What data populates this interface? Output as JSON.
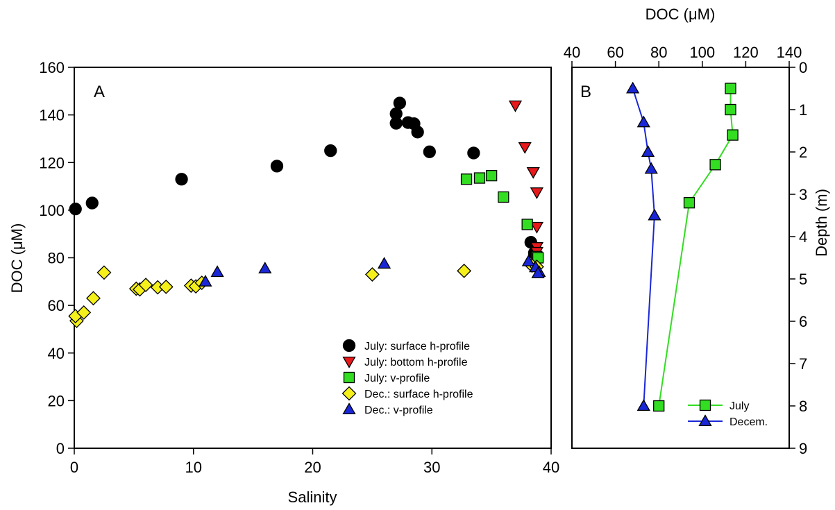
{
  "chart_data": [
    {
      "panel": "A",
      "type": "scatter",
      "xlabel": "Salinity",
      "ylabel": "DOC (μM)",
      "xlim": [
        0,
        40
      ],
      "ylim": [
        0,
        160
      ],
      "xticks": [
        "0",
        "10",
        "20",
        "30",
        "40"
      ],
      "yticks": [
        "0",
        "20",
        "40",
        "60",
        "80",
        "100",
        "120",
        "140",
        "160"
      ],
      "legend_position": "bottom-right",
      "grid": false,
      "series": [
        {
          "name": "July: surface h-profile",
          "marker": "circle",
          "color": "#000000",
          "points": [
            [
              0.1,
              100.5
            ],
            [
              1.5,
              103
            ],
            [
              9,
              113
            ],
            [
              17,
              118.5
            ],
            [
              21.5,
              125
            ],
            [
              27,
              140.5
            ],
            [
              27.3,
              145
            ],
            [
              27,
              136.5
            ],
            [
              28,
              136.8
            ],
            [
              28.5,
              136.3
            ],
            [
              28.8,
              132.8
            ],
            [
              29.8,
              124.5
            ],
            [
              33.5,
              124
            ],
            [
              38.3,
              86.5
            ],
            [
              38.6,
              82
            ]
          ]
        },
        {
          "name": "July: bottom h-profile",
          "marker": "triangle-down",
          "color": "#e8191b",
          "points": [
            [
              37,
              144
            ],
            [
              37.8,
              126.5
            ],
            [
              38.5,
              116
            ],
            [
              38.8,
              107.5
            ],
            [
              38.8,
              93
            ],
            [
              38.8,
              84.5
            ],
            [
              38.8,
              82.5
            ]
          ]
        },
        {
          "name": "July: v-profile",
          "marker": "square",
          "color": "#33dd22",
          "points": [
            [
              32.9,
              113
            ],
            [
              34,
              113.5
            ],
            [
              35,
              114.5
            ],
            [
              36,
              105.5
            ],
            [
              38,
              94
            ],
            [
              38.8,
              80.5
            ],
            [
              38.9,
              80
            ]
          ]
        },
        {
          "name": "Dec.: surface h-profile",
          "marker": "diamond",
          "color": "#f5f01a",
          "points": [
            [
              0.2,
              53.5
            ],
            [
              0.1,
              55.5
            ],
            [
              0.8,
              57
            ],
            [
              1.6,
              63
            ],
            [
              2.5,
              73.8
            ],
            [
              5.2,
              67
            ],
            [
              5.5,
              66.7
            ],
            [
              6,
              68.6
            ],
            [
              7,
              67.6
            ],
            [
              7.7,
              67.8
            ],
            [
              9.8,
              68.3
            ],
            [
              10.2,
              68
            ],
            [
              10.7,
              69.5
            ],
            [
              25,
              73
            ],
            [
              32.7,
              74.5
            ],
            [
              38.4,
              76.7
            ],
            [
              38.8,
              76.2
            ]
          ]
        },
        {
          "name": "Dec.: v-profile",
          "marker": "triangle-up",
          "color": "#1a27d6",
          "points": [
            [
              11,
              70
            ],
            [
              12,
              74
            ],
            [
              16,
              75.5
            ],
            [
              26,
              77.5
            ],
            [
              38.1,
              78.5
            ],
            [
              38.7,
              76
            ],
            [
              39,
              74
            ],
            [
              38.9,
              73.5
            ]
          ]
        }
      ]
    },
    {
      "panel": "B",
      "type": "line",
      "xlabel": "DOC (μM)",
      "ylabel": "Depth (m)",
      "xlim": [
        40,
        140
      ],
      "ylim": [
        0,
        9
      ],
      "xticks": [
        "40",
        "60",
        "80",
        "100",
        "120",
        "140"
      ],
      "yticks": [
        "0",
        "1",
        "2",
        "3",
        "4",
        "5",
        "6",
        "7",
        "8",
        "9"
      ],
      "x_axis_position": "top",
      "y_axis_position": "right",
      "y_inverted": true,
      "legend_position": "bottom-right",
      "grid": false,
      "series": [
        {
          "name": "July",
          "marker": "square",
          "color": "#33dd22",
          "points": [
            [
              113,
              0.5
            ],
            [
              113,
              1
            ],
            [
              114,
              1.6
            ],
            [
              106,
              2.3
            ],
            [
              94,
              3.2
            ],
            [
              80,
              8
            ]
          ]
        },
        {
          "name": "Decem.",
          "marker": "triangle-up",
          "color": "#1a27d6",
          "points": [
            [
              68,
              0.5
            ],
            [
              73,
              1.3
            ],
            [
              75,
              2
            ],
            [
              76.5,
              2.4
            ],
            [
              78,
              3.5
            ],
            [
              73,
              8
            ]
          ]
        }
      ]
    }
  ],
  "panelA": {
    "letter": "A",
    "xlabel": "Salinity",
    "ylabel": "DOC (μM)"
  },
  "panelB": {
    "letter": "B",
    "xlabel": "DOC (μM)",
    "ylabel": "Depth (m)"
  }
}
